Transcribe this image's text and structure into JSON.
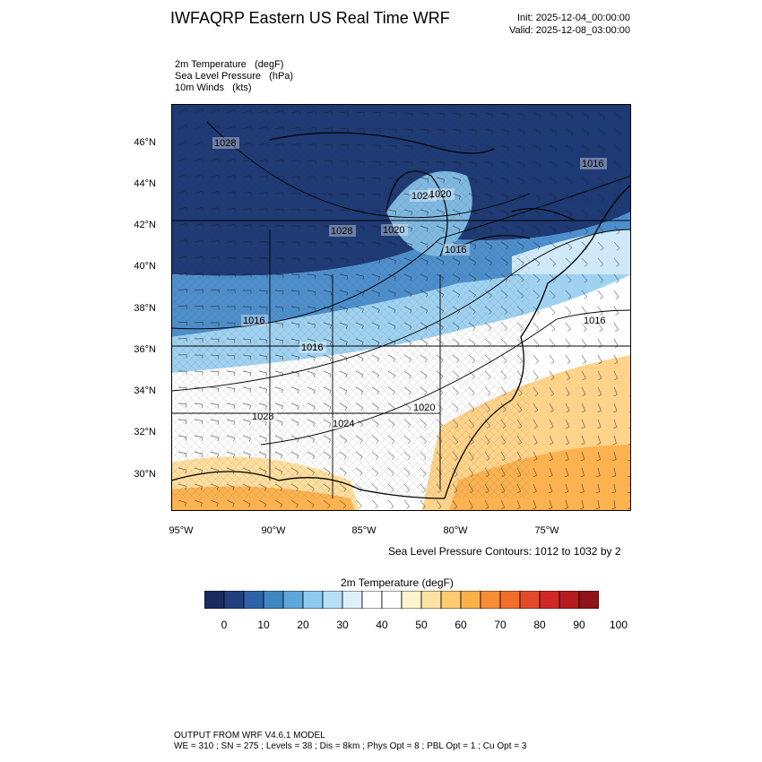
{
  "header": {
    "title": "IWFAQRP Eastern US Real Time WRF",
    "init": "Init: 2025-12-04_00:00:00",
    "valid": "Valid: 2025-12-08_03:00:00"
  },
  "fields": [
    "2m Temperature   (degF)",
    "Sea Level Pressure   (hPa)",
    "10m Winds   (kts)"
  ],
  "map": {
    "lat_labels": [
      "46°N",
      "44°N",
      "42°N",
      "40°N",
      "38°N",
      "36°N",
      "34°N",
      "32°N",
      "30°N"
    ],
    "lon_labels": [
      "95°W",
      "90°W",
      "85°W",
      "80°W",
      "75°W"
    ],
    "pressure_labels": [
      "1028",
      "1024",
      "1020",
      "1020",
      "1016",
      "1028",
      "1016",
      "1016",
      "1028",
      "1024",
      "1020",
      "1016",
      "1016"
    ],
    "contour_note": "Sea Level Pressure Contours: 1012 to 1032 by 2"
  },
  "colorbar": {
    "title": "2m Temperature  (degF)",
    "labels": [
      "0",
      "10",
      "20",
      "30",
      "40",
      "50",
      "60",
      "70",
      "80",
      "90",
      "100"
    ],
    "colors": [
      "#1a2c5e",
      "#213f7f",
      "#2e63a8",
      "#3f86c4",
      "#5fa6da",
      "#8ecbef",
      "#b6e0f7",
      "#dcf1fb",
      "#ffffff",
      "#ffffff",
      "#fff4cf",
      "#ffe3a3",
      "#ffcb72",
      "#fdb04a",
      "#f98d35",
      "#f26e2b",
      "#e44a2a",
      "#d12a26",
      "#b51c20",
      "#8f1318"
    ]
  },
  "footer": {
    "line1": "OUTPUT FROM WRF V4.6.1 MODEL",
    "line2": "WE = 310 ; SN = 275 ; Levels = 38 ; Dis = 8km ; Phys Opt = 8 ; PBL Opt = 1 ; Cu Opt = 3"
  }
}
